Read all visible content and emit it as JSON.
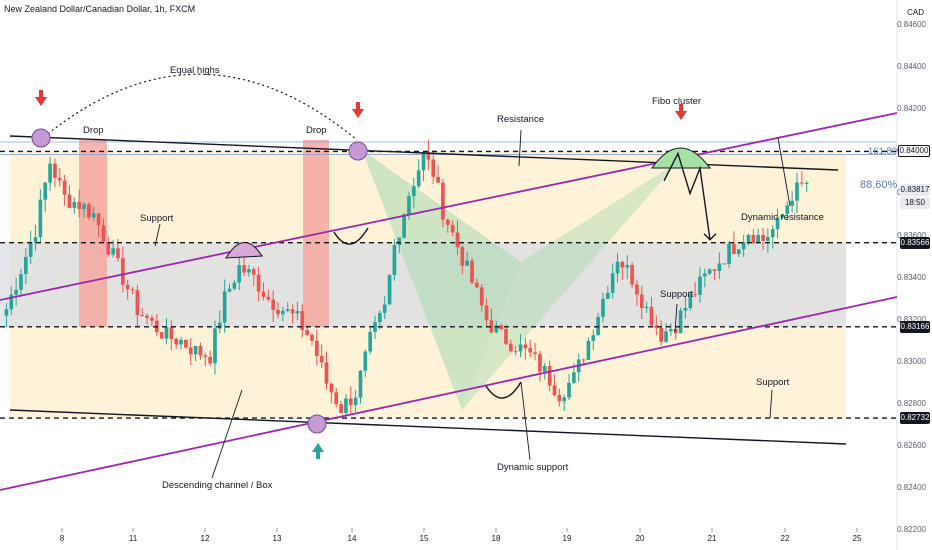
{
  "header": {
    "symbol": "New Zealand Dollar/Canadian Dollar",
    "interval": "1h",
    "exchange": "FXCM",
    "separator": ", ",
    "currency": "CAD"
  },
  "colors": {
    "up": "#26a69a",
    "down": "#ef5350",
    "channel": "#9c27b0",
    "box_fill": "#fdecc8",
    "range_fill": "#d8dce3",
    "drop_fill": "#f4a7a0",
    "harmonic_fill": "#a8d8b0",
    "arc_green": "#a5e0a5",
    "arc_purple": "#d8a7d8",
    "circle_fill": "#c39ad1",
    "arrow_red": "#e53935",
    "arrow_green": "#26a69a"
  },
  "price_tags": [
    {
      "label": "0.84000",
      "value": 0.84,
      "style": "light"
    },
    {
      "label": "0.83817",
      "value": 0.83817,
      "style": "current"
    },
    {
      "label": "18:50",
      "value": 0.83757,
      "style": "current"
    },
    {
      "label": "0.83566",
      "value": 0.83566,
      "style": "dark"
    },
    {
      "label": "0.83166",
      "value": 0.83166,
      "style": "dark"
    },
    {
      "label": "0.82732",
      "value": 0.82732,
      "style": "dark"
    }
  ],
  "annotations": {
    "equal_highs": "Equal highs",
    "drop_1": "Drop",
    "drop_2": "Drop",
    "resistance": "Resistance",
    "fibo_cluster": "Fibo cluster",
    "dynamic_resistance": "Dynamic resistance",
    "support_1": "Support",
    "support_2": "Support",
    "support_3": "Support",
    "descending_channel": "Descending channel / Box",
    "dynamic_support": "Dynamic support",
    "fib_161": "161.80%",
    "fib_886": "88.60%"
  },
  "chart_data": {
    "type": "candlestick",
    "title": "New Zealand Dollar/Canadian Dollar, 1h, FXCM",
    "xlabel": "",
    "ylabel": "",
    "x_ticks": [
      "8",
      "11",
      "12",
      "13",
      "14",
      "15",
      "18",
      "19",
      "20",
      "21",
      "22",
      "25"
    ],
    "y_ticks": [
      0.822,
      0.824,
      0.826,
      0.828,
      0.83,
      0.832,
      0.834,
      0.836,
      0.838,
      0.84,
      0.842,
      0.844,
      0.846
    ],
    "ylim": [
      0.822,
      0.8472
    ],
    "grid": false,
    "levels": {
      "horizontal_dashed": [
        0.84,
        0.83566,
        0.83166,
        0.82732
      ],
      "fib_161_8": 0.84045,
      "fib_88_6": 0.83985
    },
    "price_path_control_points": [
      [
        0,
        0.8325
      ],
      [
        3,
        0.8344
      ],
      [
        6,
        0.8363
      ],
      [
        9,
        0.8395
      ],
      [
        12,
        0.8378
      ],
      [
        15,
        0.8375
      ],
      [
        18,
        0.837
      ],
      [
        21,
        0.8355
      ],
      [
        24,
        0.834
      ],
      [
        27,
        0.8325
      ],
      [
        30,
        0.8318
      ],
      [
        33,
        0.8312
      ],
      [
        36,
        0.831
      ],
      [
        39,
        0.8305
      ],
      [
        42,
        0.8303
      ],
      [
        45,
        0.833
      ],
      [
        48,
        0.8345
      ],
      [
        51,
        0.834
      ],
      [
        54,
        0.833
      ],
      [
        57,
        0.8325
      ],
      [
        60,
        0.832
      ],
      [
        63,
        0.831
      ],
      [
        66,
        0.829
      ],
      [
        69,
        0.8278
      ],
      [
        72,
        0.8285
      ],
      [
        75,
        0.831
      ],
      [
        78,
        0.8325
      ],
      [
        80,
        0.8355
      ],
      [
        83,
        0.838
      ],
      [
        86,
        0.8398
      ],
      [
        88,
        0.839
      ],
      [
        90,
        0.8372
      ],
      [
        93,
        0.8355
      ],
      [
        96,
        0.8338
      ],
      [
        99,
        0.832
      ],
      [
        102,
        0.8312
      ],
      [
        105,
        0.8308
      ],
      [
        108,
        0.8303
      ],
      [
        111,
        0.8295
      ],
      [
        114,
        0.8285
      ],
      [
        117,
        0.8292
      ],
      [
        120,
        0.831
      ],
      [
        123,
        0.833
      ],
      [
        126,
        0.835
      ],
      [
        129,
        0.834
      ],
      [
        132,
        0.8325
      ],
      [
        135,
        0.8313
      ],
      [
        138,
        0.8318
      ],
      [
        141,
        0.833
      ],
      [
        144,
        0.834
      ],
      [
        147,
        0.8348
      ],
      [
        150,
        0.8355
      ],
      [
        153,
        0.8362
      ],
      [
        156,
        0.8358
      ],
      [
        159,
        0.8365
      ],
      [
        162,
        0.838
      ],
      [
        165,
        0.8385
      ]
    ],
    "projection": [
      0.8386,
      0.8399,
      0.838,
      0.8392,
      0.8358
    ],
    "date_span": [
      "Jul 8",
      "Jul 25"
    ]
  }
}
